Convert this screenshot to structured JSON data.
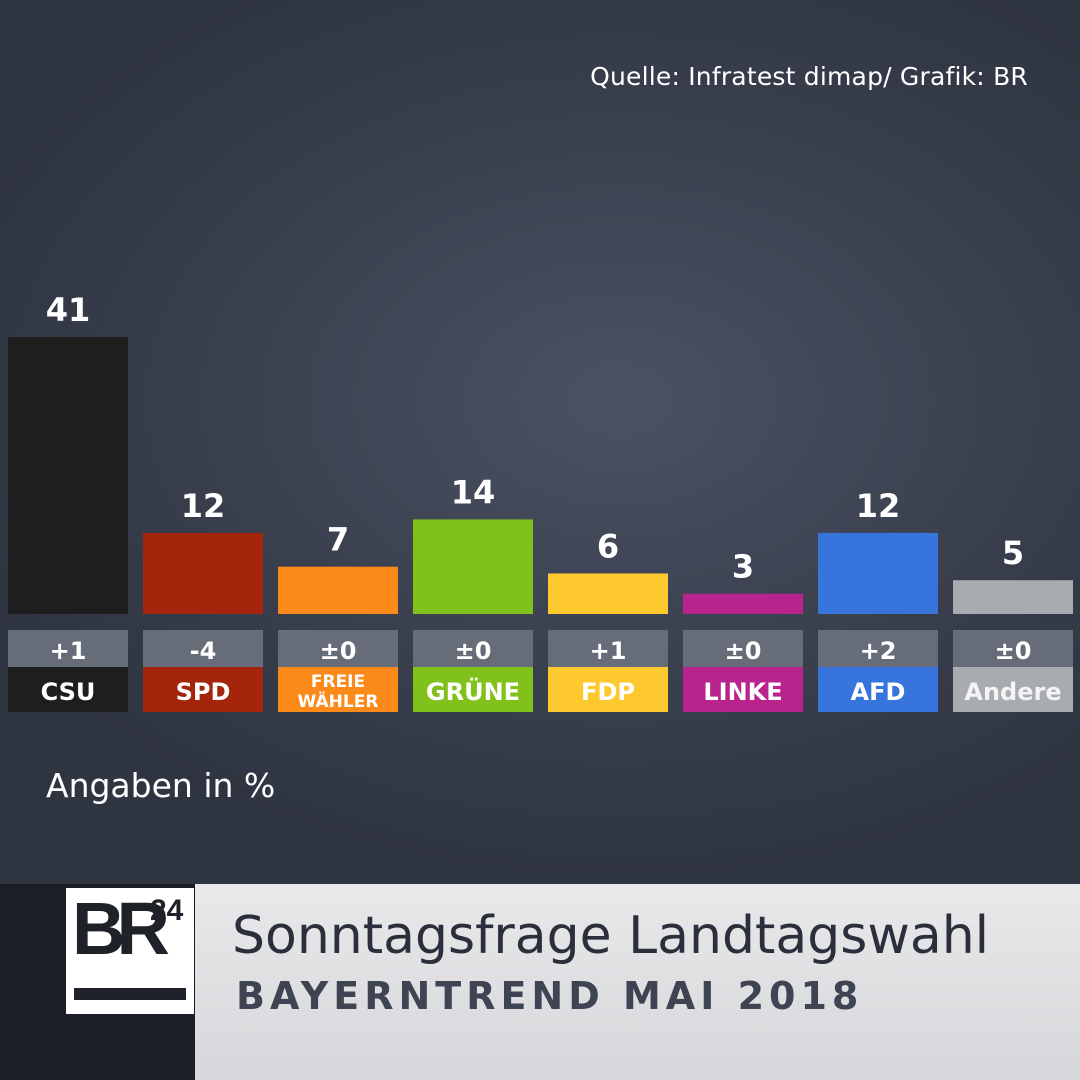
{
  "source_text": "Quelle:  Infratest dimap/ Grafik: BR",
  "unit_note": "Angaben in %",
  "footer": {
    "logo_main": "BR",
    "logo_sup": "24",
    "title": "Sonntagsfrage Landtagswahl",
    "subtitle": "BAYERNTREND MAI 2018"
  },
  "chart_data": {
    "type": "bar",
    "title": "Sonntagsfrage Landtagswahl",
    "subtitle": "BAYERNTREND MAI 2018",
    "ylabel": "",
    "xlabel": "",
    "unit": "Angaben in %",
    "ylim": [
      0,
      41
    ],
    "grid": false,
    "legend": "none",
    "categories": [
      "CSU",
      "SPD",
      "FREIE WÄHLER",
      "GRÜNE",
      "FDP",
      "LINKE",
      "AFD",
      "Andere"
    ],
    "category_lines": [
      [
        "CSU"
      ],
      [
        "SPD"
      ],
      [
        "FREIE",
        "WÄHLER"
      ],
      [
        "GRÜNE"
      ],
      [
        "FDP"
      ],
      [
        "LINKE"
      ],
      [
        "AFD"
      ],
      [
        "Andere"
      ]
    ],
    "values": [
      41,
      12,
      7,
      14,
      6,
      3,
      12,
      5
    ],
    "changes": [
      "+1",
      "-4",
      "±0",
      "±0",
      "+1",
      "±0",
      "+2",
      "±0"
    ],
    "colors": [
      "#1e1e1f",
      "#a4250c",
      "#fc8a1a",
      "#80c11b",
      "#fec82f",
      "#b9238e",
      "#3774dc",
      "#a8acb1"
    ],
    "label_box_color": "#666c78"
  }
}
